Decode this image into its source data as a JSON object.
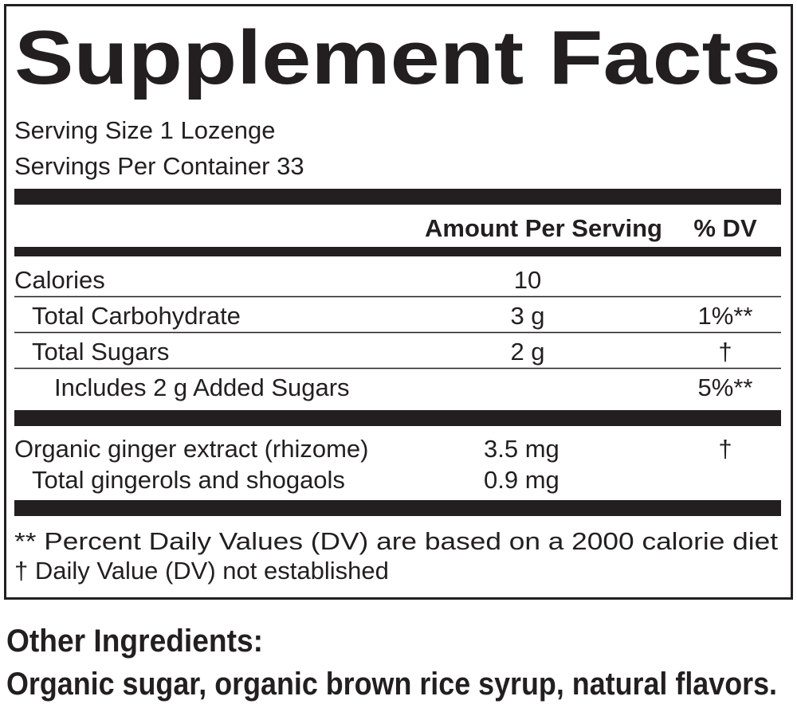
{
  "title": "Supplement Facts",
  "serving_size": "Serving Size 1 Lozenge",
  "servings_per_container": "Servings Per Container 33",
  "header": {
    "amount": "Amount Per Serving",
    "dv": "% DV"
  },
  "rows": [
    {
      "name": "Calories",
      "amount": "10"
    },
    {
      "name": "Total Carbohydrate",
      "amount": "3 g",
      "dv": "1%**"
    },
    {
      "name": "Total Sugars",
      "amount": "2 g",
      "dv": "†"
    },
    {
      "name": "Includes 2 g Added Sugars",
      "dv": "5%**"
    }
  ],
  "ingredients": [
    {
      "name": "Organic ginger extract (rhizome)",
      "amount": "3.5 mg",
      "dv": "†"
    },
    {
      "name": "Total gingerols and shogaols",
      "amount": "0.9 mg"
    }
  ],
  "footnotes": [
    "** Percent Daily Values (DV) are based on a 2000 calorie diet",
    "† Daily Value (DV) not established"
  ],
  "other_ingredients": {
    "heading": "Other Ingredients:",
    "text": "Organic sugar, organic brown rice syrup, natural flavors."
  }
}
